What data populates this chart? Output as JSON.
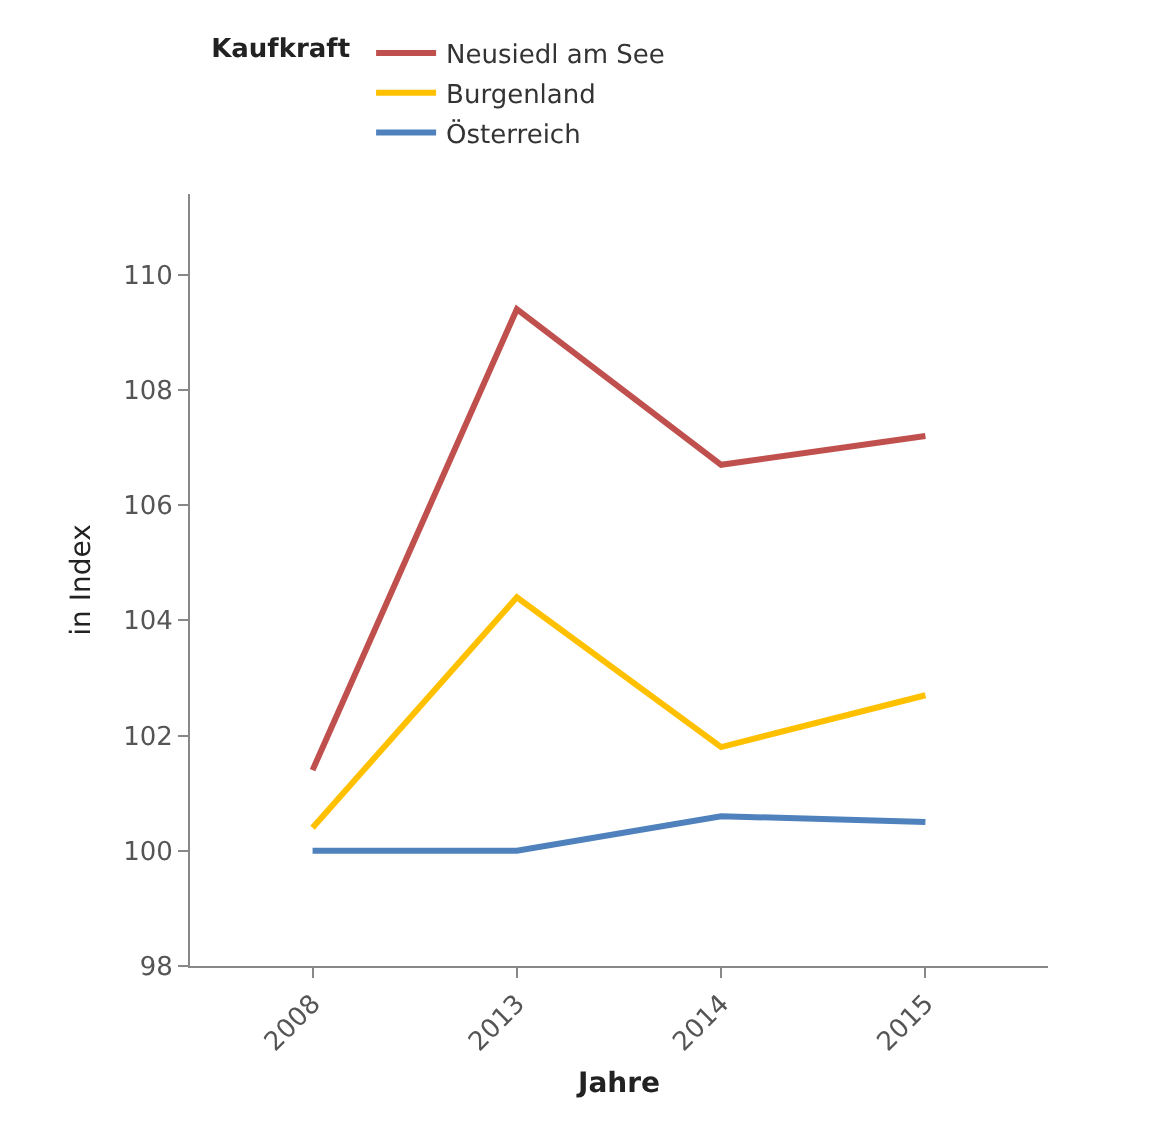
{
  "chart_data": {
    "type": "line",
    "legend_title": "Kaufkraft",
    "xlabel": "Jahre",
    "ylabel": "in Index",
    "categories": [
      "2008",
      "2013",
      "2014",
      "2015"
    ],
    "series": [
      {
        "name": "Neusiedl am See",
        "color": "#c0504d",
        "values": [
          101.4,
          109.4,
          106.7,
          107.2
        ]
      },
      {
        "name": "Burgenland",
        "color": "#ffc000",
        "values": [
          100.4,
          104.4,
          101.8,
          102.7
        ]
      },
      {
        "name": "Österreich",
        "color": "#4f81bd",
        "values": [
          100.0,
          100.0,
          100.6,
          100.5
        ]
      }
    ],
    "ylim": [
      98,
      111.4
    ],
    "yticks": [
      98,
      100,
      102,
      104,
      106,
      108,
      110
    ],
    "grid": false,
    "legend": "top",
    "marker": "none",
    "line_style": "solid"
  }
}
